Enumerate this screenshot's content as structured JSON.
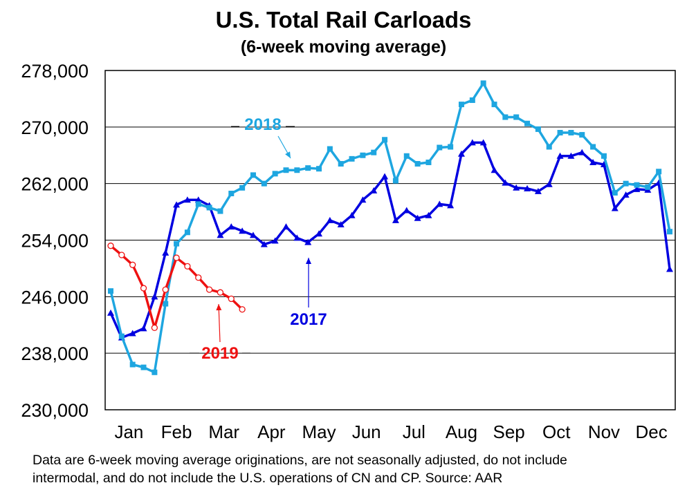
{
  "title": "U.S. Total Rail Carloads",
  "subtitle": "(6-week moving average)",
  "footnote_line1": "Data are 6-week moving average originations, are not seasonally adjusted, do not include",
  "footnote_line2": "intermodal, and do not include the U.S. operations of CN and CP.   Source: AAR",
  "colors": {
    "2017": "#0000e0",
    "2018": "#1ea6e0",
    "2019": "#ee1111"
  },
  "chart_data": {
    "type": "line",
    "title": "U.S. Total Rail Carloads",
    "subtitle": "(6-week moving average)",
    "xlabel": "",
    "ylabel": "",
    "ylim": [
      230000,
      278000
    ],
    "yticks": [
      230000,
      238000,
      246000,
      254000,
      262000,
      270000,
      278000
    ],
    "ytick_labels": [
      "230,000",
      "238,000",
      "246,000",
      "254,000",
      "262,000",
      "270,000",
      "278,000"
    ],
    "x_unit": "week",
    "xlim": [
      1,
      52
    ],
    "months": [
      "Jan",
      "Feb",
      "Mar",
      "Apr",
      "May",
      "Jun",
      "Jul",
      "Aug",
      "Sep",
      "Oct",
      "Nov",
      "Dec"
    ],
    "grid": true,
    "series": [
      {
        "name": "2017",
        "color": "#0000e0",
        "marker": "triangle",
        "weeks": [
          1,
          2,
          3,
          4,
          5,
          6,
          7,
          8,
          9,
          10,
          11,
          12,
          13,
          14,
          15,
          16,
          17,
          18,
          19,
          20,
          21,
          22,
          23,
          24,
          25,
          26,
          27,
          28,
          29,
          30,
          31,
          32,
          33,
          34,
          35,
          36,
          37,
          38,
          39,
          40,
          41,
          42,
          43,
          44,
          45,
          46,
          47,
          48,
          49,
          50,
          51,
          52
        ],
        "values": [
          243700,
          240200,
          240800,
          241500,
          246000,
          252200,
          259000,
          259700,
          259700,
          258900,
          254700,
          255900,
          255300,
          254700,
          253400,
          253900,
          255900,
          254300,
          253700,
          254900,
          256800,
          256200,
          257500,
          259700,
          261000,
          263000,
          256800,
          258200,
          257100,
          257500,
          259100,
          258900,
          266200,
          267800,
          267800,
          263900,
          262100,
          261400,
          261300,
          260900,
          261900,
          265900,
          265900,
          266400,
          265000,
          264700,
          258500,
          260400,
          261200,
          261100,
          262100,
          249900
        ]
      },
      {
        "name": "2018",
        "color": "#1ea6e0",
        "marker": "square",
        "weeks": [
          1,
          2,
          3,
          4,
          5,
          6,
          7,
          8,
          9,
          10,
          11,
          12,
          13,
          14,
          15,
          16,
          17,
          18,
          19,
          20,
          21,
          22,
          23,
          24,
          25,
          26,
          27,
          28,
          29,
          30,
          31,
          32,
          33,
          34,
          35,
          36,
          37,
          38,
          39,
          40,
          41,
          42,
          43,
          44,
          45,
          46,
          47,
          48,
          49,
          50,
          51,
          52
        ],
        "values": [
          246800,
          240400,
          236400,
          236000,
          235300,
          245000,
          253500,
          255100,
          259100,
          258600,
          258100,
          260600,
          261400,
          263200,
          262000,
          263400,
          263900,
          263900,
          264200,
          264100,
          266900,
          264800,
          265500,
          266000,
          266400,
          268200,
          262400,
          265900,
          264800,
          265000,
          267100,
          267200,
          273200,
          273800,
          276200,
          273200,
          271400,
          271400,
          270500,
          269700,
          267200,
          269200,
          269200,
          268900,
          267200,
          265900,
          260700,
          262000,
          261800,
          261500,
          263700,
          255200
        ]
      },
      {
        "name": "2019",
        "color": "#ee1111",
        "marker": "open-circle",
        "weeks": [
          1,
          2,
          3,
          4,
          5,
          6,
          7,
          8,
          9,
          10,
          11,
          12,
          13
        ],
        "values": [
          253200,
          251900,
          250500,
          247200,
          241600,
          247000,
          251500,
          250300,
          248700,
          247000,
          246600,
          245700,
          244200
        ]
      }
    ],
    "annotations": [
      {
        "text": "2018",
        "series": "2018"
      },
      {
        "text": "2017",
        "series": "2017"
      },
      {
        "text": "2019",
        "series": "2019"
      }
    ]
  }
}
